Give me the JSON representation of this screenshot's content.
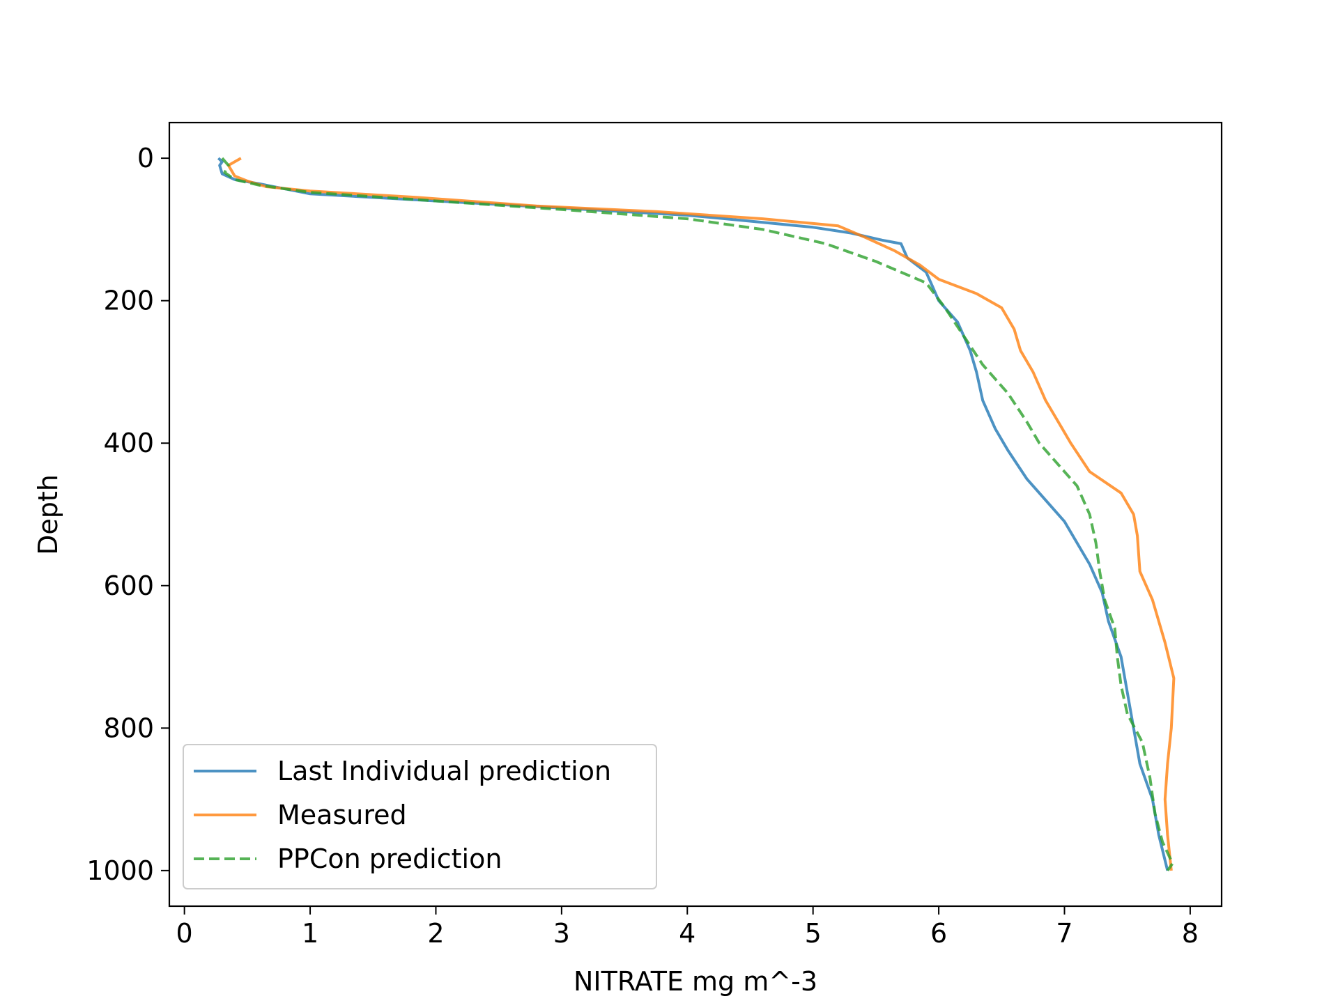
{
  "chart_data": {
    "type": "line",
    "title": "",
    "xlabel": "NITRATE mg m^-3",
    "ylabel": "Depth",
    "xlim": [
      -0.12,
      8.25
    ],
    "ylim": [
      1050,
      -50
    ],
    "y_inverted": true,
    "xticks": [
      "0",
      "1",
      "2",
      "3",
      "4",
      "5",
      "6",
      "7",
      "8"
    ],
    "yticks": [
      "0",
      "200",
      "400",
      "600",
      "800",
      "1000"
    ],
    "grid": false,
    "legend_position": "lower-left",
    "series": [
      {
        "name": "Last Individual prediction",
        "color": "#1f77b4",
        "style": "solid",
        "points": [
          [
            0.27,
            0
          ],
          [
            0.3,
            5
          ],
          [
            0.28,
            10
          ],
          [
            0.3,
            22
          ],
          [
            0.4,
            30
          ],
          [
            0.6,
            36
          ],
          [
            1.0,
            50
          ],
          [
            2.0,
            60
          ],
          [
            3.0,
            70
          ],
          [
            4.0,
            80
          ],
          [
            4.6,
            90
          ],
          [
            5.0,
            97
          ],
          [
            5.3,
            105
          ],
          [
            5.55,
            115
          ],
          [
            5.7,
            120
          ],
          [
            5.75,
            140
          ],
          [
            5.9,
            160
          ],
          [
            5.95,
            180
          ],
          [
            6.0,
            200
          ],
          [
            6.15,
            230
          ],
          [
            6.25,
            270
          ],
          [
            6.3,
            300
          ],
          [
            6.35,
            340
          ],
          [
            6.45,
            380
          ],
          [
            6.55,
            410
          ],
          [
            6.7,
            450
          ],
          [
            6.85,
            480
          ],
          [
            7.0,
            510
          ],
          [
            7.1,
            540
          ],
          [
            7.2,
            570
          ],
          [
            7.3,
            610
          ],
          [
            7.35,
            650
          ],
          [
            7.45,
            700
          ],
          [
            7.5,
            750
          ],
          [
            7.55,
            800
          ],
          [
            7.6,
            850
          ],
          [
            7.7,
            900
          ],
          [
            7.75,
            950
          ],
          [
            7.82,
            1000
          ]
        ]
      },
      {
        "name": "Measured",
        "color": "#ff7f0e",
        "style": "solid",
        "points": [
          [
            0.45,
            0
          ],
          [
            0.35,
            10
          ],
          [
            0.4,
            25
          ],
          [
            0.5,
            32
          ],
          [
            0.65,
            40
          ],
          [
            1.0,
            46
          ],
          [
            1.85,
            55
          ],
          [
            2.8,
            67
          ],
          [
            3.75,
            75
          ],
          [
            4.6,
            85
          ],
          [
            5.2,
            95
          ],
          [
            5.4,
            110
          ],
          [
            5.65,
            130
          ],
          [
            5.85,
            150
          ],
          [
            6.0,
            170
          ],
          [
            6.3,
            190
          ],
          [
            6.5,
            210
          ],
          [
            6.6,
            240
          ],
          [
            6.65,
            270
          ],
          [
            6.75,
            300
          ],
          [
            6.85,
            340
          ],
          [
            6.95,
            370
          ],
          [
            7.05,
            400
          ],
          [
            7.2,
            440
          ],
          [
            7.45,
            470
          ],
          [
            7.55,
            500
          ],
          [
            7.58,
            530
          ],
          [
            7.6,
            580
          ],
          [
            7.7,
            620
          ],
          [
            7.8,
            680
          ],
          [
            7.87,
            730
          ],
          [
            7.85,
            800
          ],
          [
            7.82,
            850
          ],
          [
            7.8,
            900
          ],
          [
            7.82,
            950
          ],
          [
            7.85,
            1000
          ]
        ]
      },
      {
        "name": "PPCon prediction",
        "color": "#2ca02c",
        "style": "dashed",
        "points": [
          [
            0.3,
            0
          ],
          [
            0.35,
            10
          ],
          [
            0.32,
            20
          ],
          [
            0.4,
            30
          ],
          [
            0.6,
            38
          ],
          [
            1.0,
            48
          ],
          [
            2.0,
            60
          ],
          [
            3.0,
            72
          ],
          [
            4.0,
            85
          ],
          [
            4.6,
            100
          ],
          [
            5.1,
            120
          ],
          [
            5.5,
            145
          ],
          [
            5.9,
            175
          ],
          [
            6.05,
            210
          ],
          [
            6.2,
            250
          ],
          [
            6.35,
            290
          ],
          [
            6.55,
            330
          ],
          [
            6.7,
            370
          ],
          [
            6.8,
            400
          ],
          [
            6.95,
            430
          ],
          [
            7.1,
            460
          ],
          [
            7.2,
            500
          ],
          [
            7.25,
            540
          ],
          [
            7.28,
            580
          ],
          [
            7.32,
            620
          ],
          [
            7.4,
            660
          ],
          [
            7.42,
            700
          ],
          [
            7.45,
            740
          ],
          [
            7.5,
            780
          ],
          [
            7.62,
            820
          ],
          [
            7.68,
            870
          ],
          [
            7.72,
            920
          ],
          [
            7.78,
            960
          ],
          [
            7.86,
            990
          ],
          [
            7.82,
            1000
          ]
        ]
      }
    ]
  }
}
